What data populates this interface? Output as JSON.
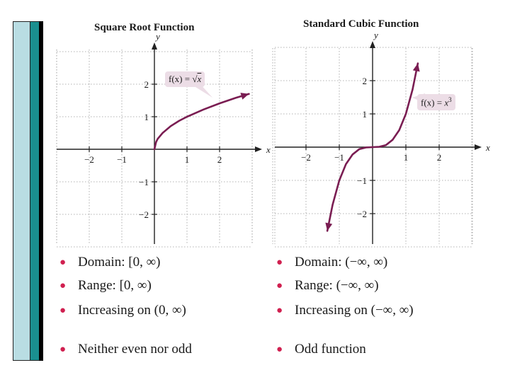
{
  "chart_data": [
    {
      "type": "line",
      "title": "Square Root Function",
      "xlabel": "x",
      "ylabel": "y",
      "xlim": [
        -3,
        3
      ],
      "ylim": [
        -3,
        3
      ],
      "xticks": [
        "−2",
        "−1",
        "1",
        "2"
      ],
      "yticks": [
        "2",
        "1",
        "−1",
        "−2"
      ],
      "grid": true,
      "series": [
        {
          "function": "f(x) = √x",
          "x": [
            0,
            0.05,
            0.1,
            0.25,
            0.5,
            0.75,
            1,
            1.5,
            2,
            2.5,
            2.9
          ],
          "y": [
            0,
            0.22,
            0.32,
            0.5,
            0.71,
            0.87,
            1,
            1.22,
            1.41,
            1.58,
            1.7
          ]
        }
      ],
      "annotation": {
        "label_prefix": "f(x) = ",
        "label_root": "√",
        "label_var": "x"
      },
      "bullets": [
        "Domain: [0, ∞)",
        "Range: [0, ∞)",
        "Increasing on (0, ∞)",
        "Neither even nor odd"
      ]
    },
    {
      "type": "line",
      "title": "Standard Cubic Function",
      "xlabel": "x",
      "ylabel": "y",
      "xlim": [
        -3,
        3
      ],
      "ylim": [
        -3,
        3
      ],
      "xticks": [
        "−2",
        "−1",
        "1",
        "2"
      ],
      "yticks": [
        "2",
        "1",
        "−1",
        "−2"
      ],
      "grid": true,
      "series": [
        {
          "function": "f(x) = x³",
          "x": [
            -1.36,
            -1.2,
            -1,
            -0.8,
            -0.6,
            -0.4,
            -0.2,
            0,
            0.2,
            0.4,
            0.6,
            0.8,
            1,
            1.2,
            1.36
          ],
          "y": [
            -2.52,
            -1.73,
            -1,
            -0.51,
            -0.22,
            -0.06,
            -0.01,
            0,
            0.01,
            0.06,
            0.22,
            0.51,
            1,
            1.73,
            2.52
          ]
        }
      ],
      "annotation": {
        "label_prefix": "f(x) = ",
        "label_var": "x",
        "label_exp": "3"
      },
      "bullets": [
        "Domain: (−∞, ∞)",
        "Range: (−∞, ∞)",
        "Increasing on (−∞, ∞)",
        "Odd function"
      ]
    }
  ],
  "colors": {
    "curve": "#7a1d52",
    "bullet": "#d02050",
    "label_bg": "#ecdde6"
  }
}
